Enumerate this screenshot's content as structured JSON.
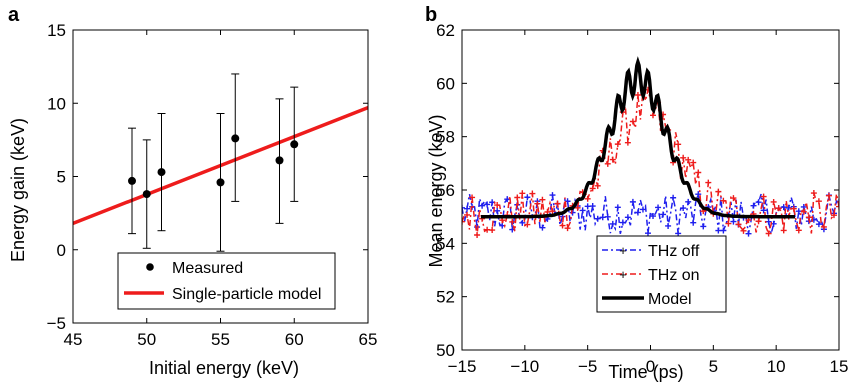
{
  "chart_data": [
    {
      "panel_label": "a",
      "type": "scatter",
      "xlabel": "Initial energy (keV)",
      "ylabel": "Energy gain (keV)",
      "xlim": [
        45,
        65
      ],
      "ylim": [
        -5,
        15
      ],
      "xticks": [
        45,
        50,
        55,
        60,
        65
      ],
      "yticks": [
        -5,
        0,
        5,
        10,
        15
      ],
      "grid": false,
      "legend_position": "bottom-right",
      "series": [
        {
          "name": "Measured",
          "kind": "points_with_errorbars",
          "color": "#000000",
          "points": [
            {
              "x": 49.0,
              "y": 4.7,
              "lo": 1.1,
              "hi": 8.3
            },
            {
              "x": 50.0,
              "y": 3.8,
              "lo": 0.1,
              "hi": 7.5
            },
            {
              "x": 51.0,
              "y": 5.3,
              "lo": 1.3,
              "hi": 9.3
            },
            {
              "x": 55.0,
              "y": 4.6,
              "lo": -0.1,
              "hi": 9.3
            },
            {
              "x": 56.0,
              "y": 7.6,
              "lo": 3.3,
              "hi": 12.0
            },
            {
              "x": 59.0,
              "y": 6.1,
              "lo": 1.8,
              "hi": 10.3
            },
            {
              "x": 60.0,
              "y": 7.2,
              "lo": 3.3,
              "hi": 11.1
            }
          ]
        },
        {
          "name": "Single-particle model",
          "kind": "line",
          "color": "#ee1c1c",
          "x": [
            45,
            65
          ],
          "y": [
            1.8,
            9.7
          ]
        }
      ]
    },
    {
      "panel_label": "b",
      "type": "line",
      "xlabel": "Time (ps)",
      "ylabel": "Mean energy (keV)",
      "xlim": [
        -15,
        15
      ],
      "ylim": [
        50,
        62
      ],
      "xticks": [
        -15,
        -10,
        -5,
        0,
        5,
        10,
        15
      ],
      "yticks": [
        50,
        52,
        54,
        56,
        58,
        60,
        62
      ],
      "grid": false,
      "legend_position": "bottom-center",
      "series": [
        {
          "name": "THz off",
          "color": "#1f1fee",
          "style": "dash-dot with markers",
          "baseline": 55.1,
          "noise_amplitude": 0.75,
          "x_range": [
            -15,
            15
          ]
        },
        {
          "name": "THz on",
          "color": "#ee1c1c",
          "style": "dash-dot with markers",
          "baseline": 55.1,
          "peak": 59.0,
          "peak_center": -0.5,
          "peak_width": 3.6,
          "noise_amplitude": 0.8,
          "x_range": [
            -15,
            15
          ]
        },
        {
          "name": "Model",
          "color": "#000000",
          "style": "solid thick",
          "x_range": [
            -13.5,
            11.5
          ],
          "baseline": 55.0,
          "peak": 60.8,
          "peak_center": -1.0,
          "peak_width": 3.2,
          "oscillation_amplitude": 0.6,
          "oscillation_period": 0.8
        }
      ]
    }
  ]
}
